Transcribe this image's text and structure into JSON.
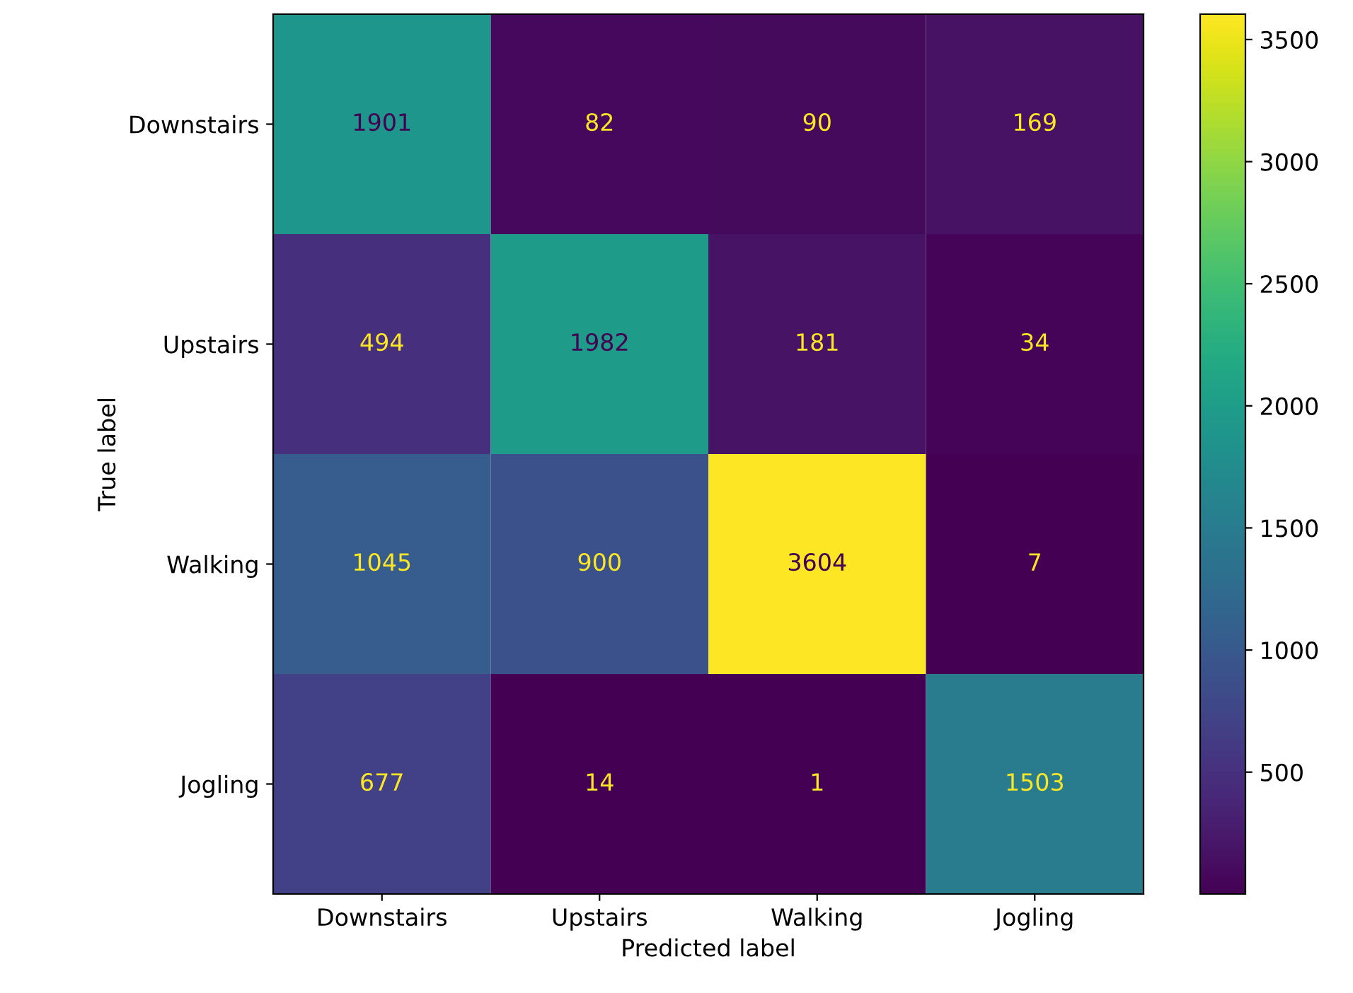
{
  "chart_data": {
    "type": "heatmap",
    "xlabel": "Predicted label",
    "ylabel": "True label",
    "categories": [
      "Downstairs",
      "Upstairs",
      "Walking",
      "Jogling"
    ],
    "y_categories": [
      "Downstairs",
      "Upstairs",
      "Walking",
      "Jogling"
    ],
    "cells": [
      [
        1901,
        82,
        90,
        169
      ],
      [
        494,
        1982,
        181,
        34
      ],
      [
        1045,
        900,
        3604,
        7
      ],
      [
        677,
        14,
        1,
        1503
      ]
    ],
    "clim": [
      1,
      3604
    ],
    "cticks": [
      500,
      1000,
      1500,
      2000,
      2500,
      3000,
      3500
    ],
    "data_labels": true,
    "grid": false
  }
}
